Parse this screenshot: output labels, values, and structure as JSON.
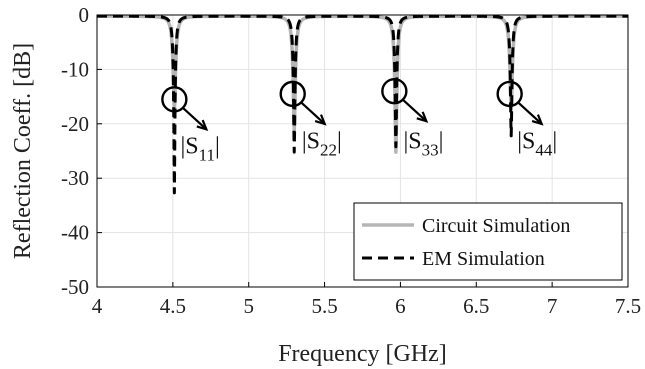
{
  "chart_data": {
    "type": "line",
    "xlabel": "Frequency [GHz]",
    "ylabel": "Reflection Coeff. [dB]",
    "xlim": [
      4,
      7.5
    ],
    "ylim": [
      -50,
      0
    ],
    "x_ticks": [
      4,
      4.5,
      5,
      5.5,
      6,
      6.5,
      7,
      7.5
    ],
    "y_ticks": [
      0,
      -10,
      -20,
      -30,
      -40,
      -50
    ],
    "x_tick_labels": [
      "4",
      "4.5",
      "5",
      "5.5",
      "6",
      "6.5",
      "7",
      "7.5"
    ],
    "y_tick_labels": [
      "0",
      "-10",
      "-20",
      "-30",
      "-40",
      "-50"
    ],
    "grid": true,
    "legend": {
      "placement": "bottom-right",
      "entries": [
        {
          "label": "Circuit Simulation",
          "color": "#b5b5b5",
          "dash": "solid"
        },
        {
          "label": "EM Simulation",
          "color": "#000000",
          "dash": "dashed"
        }
      ]
    },
    "resonances": [
      {
        "freq": 4.51,
        "circuit_min": -17,
        "em_min": -32.5,
        "label_main": "|S",
        "label_sub": "11",
        "label_end": "|"
      },
      {
        "freq": 5.3,
        "circuit_min": -21,
        "em_min": -25,
        "label_main": "|S",
        "label_sub": "22",
        "label_end": "|"
      },
      {
        "freq": 5.97,
        "circuit_min": -25,
        "em_min": -24,
        "label_main": "|S",
        "label_sub": "33",
        "label_end": "|"
      },
      {
        "freq": 6.73,
        "circuit_min": -17,
        "em_min": -22,
        "label_main": "|S",
        "label_sub": "44",
        "label_end": "|"
      }
    ],
    "series": [
      {
        "name": "Circuit Simulation",
        "color": "#b5b5b5"
      },
      {
        "name": "EM Simulation",
        "color": "#000000"
      }
    ],
    "annotations": [
      {
        "freq": 4.51,
        "circle_y": -15.5,
        "text_x": 4.55,
        "text_y": -25.5
      },
      {
        "freq": 5.29,
        "circle_y": -14.5,
        "text_x": 5.35,
        "text_y": -24.5
      },
      {
        "freq": 5.96,
        "circle_y": -14.0,
        "text_x": 6.02,
        "text_y": -24.5
      },
      {
        "freq": 6.72,
        "circle_y": -14.5,
        "text_x": 6.77,
        "text_y": -24.5
      }
    ]
  }
}
